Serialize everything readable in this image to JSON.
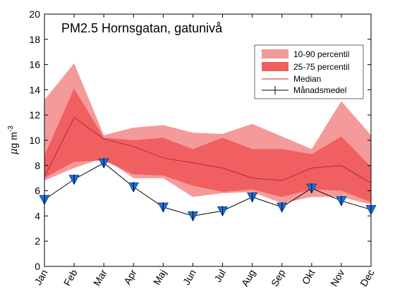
{
  "chart_data": {
    "type": "area",
    "title": "PM2.5 Hornsgatan, gatunivå",
    "ylabel_mu": "μ",
    "ylabel_rest": "g m",
    "ylabel_sup": "-3",
    "ylim": [
      0,
      20
    ],
    "yticks": [
      0,
      2,
      4,
      6,
      8,
      10,
      12,
      14,
      16,
      18,
      20
    ],
    "ytick_labels": [
      "0",
      "2",
      "4",
      "6",
      "8",
      "10",
      "12",
      "14",
      "16",
      "18",
      "20"
    ],
    "categories": [
      "Jan",
      "Feb",
      "Mar",
      "Apr",
      "Maj",
      "Jun",
      "Jul",
      "Aug",
      "Sep",
      "Okt",
      "Nov",
      "Dec"
    ],
    "legend_position": "top-right",
    "series": [
      {
        "name": "10-90 percentil",
        "kind": "band",
        "color": "#f59a9a",
        "lower": [
          6.8,
          7.8,
          8.6,
          7.0,
          7.0,
          5.5,
          5.8,
          5.9,
          5.0,
          5.5,
          5.5,
          4.9
        ],
        "upper": [
          13.2,
          16.1,
          10.4,
          11.0,
          11.2,
          10.6,
          10.5,
          11.3,
          10.3,
          9.3,
          13.1,
          10.4
        ]
      },
      {
        "name": "25-75 percentil",
        "kind": "band",
        "color": "#f06060",
        "lower": [
          7.0,
          8.3,
          8.4,
          7.3,
          7.2,
          6.4,
          5.9,
          6.1,
          5.5,
          6.1,
          6.0,
          5.1
        ],
        "upper": [
          8.8,
          14.1,
          10.2,
          10.0,
          10.2,
          9.3,
          10.2,
          9.3,
          9.3,
          8.9,
          10.3,
          7.9
        ]
      },
      {
        "name": "Median",
        "kind": "line",
        "color": "#b02a40",
        "values": [
          7.1,
          11.8,
          10.1,
          9.5,
          8.6,
          8.2,
          7.8,
          7.0,
          6.8,
          7.8,
          8.0,
          6.6
        ]
      },
      {
        "name": "Månadsmedel",
        "kind": "line",
        "color": "#000000",
        "marker_color": "#1f6fd8",
        "values": [
          5.3,
          6.9,
          8.2,
          6.3,
          4.7,
          4.0,
          4.4,
          5.5,
          4.7,
          6.2,
          5.2,
          4.5
        ]
      }
    ]
  }
}
